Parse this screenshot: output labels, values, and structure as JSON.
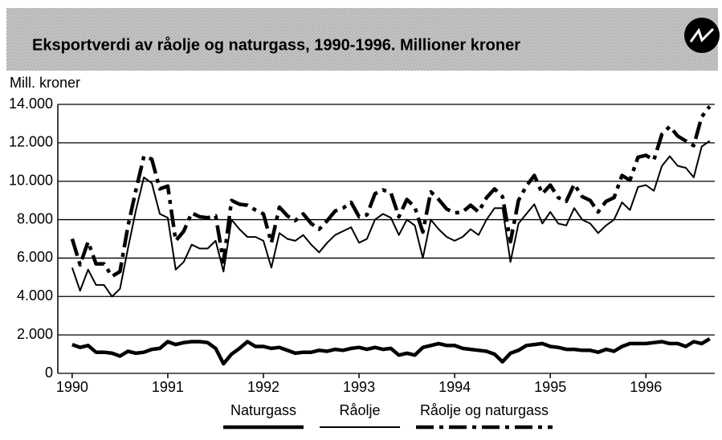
{
  "chart_data": {
    "type": "line",
    "title": "Eksportverdi av råolje og naturgass, 1990-1996. Millioner kroner",
    "y_axis_label": "Mill. kroner",
    "x": [
      1990.0,
      1990.083,
      1990.167,
      1990.25,
      1990.333,
      1990.417,
      1990.5,
      1990.583,
      1990.667,
      1990.75,
      1990.833,
      1990.917,
      1991.0,
      1991.083,
      1991.167,
      1991.25,
      1991.333,
      1991.417,
      1991.5,
      1991.583,
      1991.667,
      1991.75,
      1991.833,
      1991.917,
      1992.0,
      1992.083,
      1992.167,
      1992.25,
      1992.333,
      1992.417,
      1992.5,
      1992.583,
      1992.667,
      1992.75,
      1992.833,
      1992.917,
      1993.0,
      1993.083,
      1993.167,
      1993.25,
      1993.333,
      1993.417,
      1993.5,
      1993.583,
      1993.667,
      1993.75,
      1993.833,
      1993.917,
      1994.0,
      1994.083,
      1994.167,
      1994.25,
      1994.333,
      1994.417,
      1994.5,
      1994.583,
      1994.667,
      1994.75,
      1994.833,
      1994.917,
      1995.0,
      1995.083,
      1995.167,
      1995.25,
      1995.333,
      1995.417,
      1995.5,
      1995.583,
      1995.667,
      1995.75,
      1995.833,
      1995.917,
      1996.0,
      1996.083,
      1996.167,
      1996.25,
      1996.333,
      1996.417,
      1996.5,
      1996.583,
      1996.667
    ],
    "series": [
      {
        "name": "Naturgass",
        "color": "#000000",
        "style": "thick",
        "values": [
          1500,
          1350,
          1450,
          1100,
          1100,
          1050,
          900,
          1150,
          1050,
          1100,
          1250,
          1300,
          1650,
          1500,
          1600,
          1650,
          1650,
          1600,
          1300,
          500,
          1000,
          1300,
          1650,
          1400,
          1400,
          1300,
          1350,
          1200,
          1050,
          1100,
          1100,
          1200,
          1150,
          1250,
          1200,
          1300,
          1350,
          1250,
          1350,
          1250,
          1300,
          950,
          1050,
          950,
          1350,
          1450,
          1550,
          1450,
          1450,
          1300,
          1250,
          1200,
          1150,
          1000,
          600,
          1050,
          1200,
          1450,
          1500,
          1550,
          1400,
          1350,
          1250,
          1250,
          1200,
          1200,
          1100,
          1250,
          1150,
          1400,
          1550,
          1550,
          1550,
          1600,
          1650,
          1550,
          1550,
          1400,
          1650,
          1550,
          1800
        ]
      },
      {
        "name": "Råolje",
        "color": "#000000",
        "style": "thin",
        "values": [
          5500,
          4300,
          5400,
          4600,
          4600,
          4000,
          4400,
          6500,
          8500,
          10200,
          9900,
          8300,
          8100,
          5400,
          5800,
          6700,
          6500,
          6500,
          6900,
          5300,
          8000,
          7500,
          7100,
          7100,
          6900,
          5500,
          7300,
          7000,
          6900,
          7200,
          6700,
          6300,
          6800,
          7200,
          7400,
          7600,
          6800,
          7000,
          8000,
          8300,
          8100,
          7200,
          8000,
          7700,
          6000,
          8000,
          7500,
          7100,
          6900,
          7100,
          7500,
          7200,
          8000,
          8600,
          8600,
          5800,
          7800,
          8300,
          8800,
          7800,
          8400,
          7800,
          7700,
          8600,
          8000,
          7800,
          7300,
          7700,
          8000,
          8900,
          8500,
          9700,
          9800,
          9500,
          10800,
          11300,
          10800,
          10700,
          10200,
          11800,
          12100
        ]
      },
      {
        "name": "Råolje og naturgass",
        "color": "#000000",
        "style": "dashdot",
        "values": [
          7000,
          5650,
          6850,
          5700,
          5700,
          5050,
          5300,
          7650,
          9550,
          11300,
          11150,
          9600,
          9750,
          6900,
          7400,
          8350,
          8150,
          8100,
          8200,
          5800,
          9000,
          8800,
          8750,
          8500,
          8300,
          6800,
          8650,
          8200,
          7950,
          8300,
          7800,
          7500,
          7950,
          8450,
          8600,
          8900,
          8150,
          8250,
          9350,
          9550,
          9400,
          8150,
          9050,
          8650,
          7350,
          9450,
          9050,
          8550,
          8350,
          8400,
          8750,
          8400,
          9150,
          9600,
          9200,
          6850,
          9000,
          9750,
          10300,
          9350,
          9800,
          9150,
          8950,
          9850,
          9200,
          9000,
          8400,
          8950,
          9150,
          10300,
          10050,
          11250,
          11350,
          11100,
          12450,
          12850,
          12350,
          12100,
          11850,
          13350,
          13900
        ]
      }
    ],
    "xlim": [
      1989.85,
      1996.72
    ],
    "xticks": [
      1990,
      1991,
      1992,
      1993,
      1994,
      1995,
      1996
    ],
    "ylim": [
      0,
      14000
    ],
    "yticks": [
      0,
      {
        "value": 2000,
        "label": "2.000"
      },
      {
        "value": 4000,
        "label": "4.000"
      },
      {
        "value": 6000,
        "label": "6.000"
      },
      {
        "value": 8000,
        "label": "8.000"
      },
      {
        "value": 10000,
        "label": "10.000"
      },
      {
        "value": 12000,
        "label": "12.000"
      },
      {
        "value": 14000,
        "label": "14.000"
      }
    ],
    "grid": true,
    "legend": "bottom"
  }
}
